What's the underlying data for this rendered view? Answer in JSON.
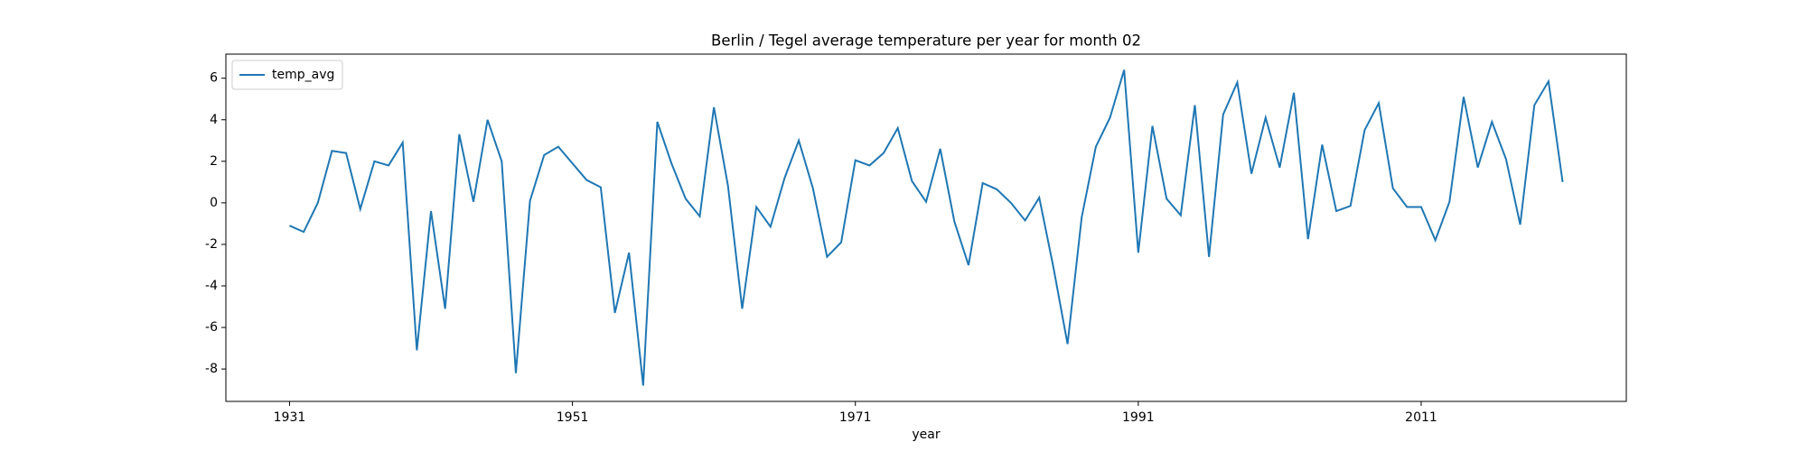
{
  "chart_data": {
    "type": "line",
    "title": "Berlin / Tegel average temperature per year for month 02",
    "x_label": "year",
    "x": [
      1931,
      1932,
      1933,
      1934,
      1935,
      1936,
      1937,
      1938,
      1939,
      1940,
      1941,
      1942,
      1943,
      1944,
      1945,
      1946,
      1947,
      1948,
      1949,
      1950,
      1951,
      1952,
      1953,
      1954,
      1955,
      1956,
      1957,
      1958,
      1959,
      1960,
      1961,
      1962,
      1963,
      1964,
      1965,
      1966,
      1967,
      1968,
      1969,
      1970,
      1971,
      1972,
      1973,
      1974,
      1975,
      1976,
      1977,
      1978,
      1979,
      1980,
      1981,
      1982,
      1983,
      1984,
      1985,
      1986,
      1987,
      1988,
      1989,
      1990,
      1991,
      1992,
      1993,
      1994,
      1995,
      1996,
      1997,
      1998,
      1999,
      2000,
      2001,
      2002,
      2003,
      2004,
      2005,
      2006,
      2007,
      2008,
      2009,
      2010,
      2011,
      2012,
      2013,
      2014,
      2015,
      2016,
      2017,
      2018,
      2019,
      2020,
      2021
    ],
    "series": [
      {
        "name": "temp_avg",
        "color": "#1f77b4",
        "values": [
          -1.1,
          -1.4,
          0.0,
          2.5,
          2.4,
          -0.3,
          2.0,
          1.8,
          2.9,
          -7.1,
          -0.4,
          -5.1,
          3.3,
          0.05,
          4.0,
          2.0,
          -8.2,
          0.1,
          2.3,
          2.7,
          1.9,
          1.1,
          0.75,
          -5.3,
          -2.4,
          -8.8,
          3.9,
          1.9,
          0.2,
          -0.65,
          4.6,
          0.8,
          -5.1,
          -0.2,
          -1.15,
          1.2,
          3.0,
          0.7,
          -2.6,
          -1.9,
          2.05,
          1.8,
          2.4,
          3.6,
          1.05,
          0.05,
          2.6,
          -0.9,
          -3.0,
          0.95,
          0.65,
          0.0,
          -0.85,
          0.25,
          -3.1,
          -6.8,
          -0.7,
          2.7,
          4.1,
          6.4,
          -2.4,
          3.7,
          0.2,
          -0.6,
          4.7,
          -2.6,
          4.25,
          5.8,
          1.4,
          4.1,
          1.7,
          5.3,
          -1.75,
          2.8,
          -0.4,
          -0.15,
          3.5,
          4.8,
          0.7,
          -0.2,
          -0.2,
          -1.8,
          0.05,
          5.1,
          1.7,
          3.9,
          2.1,
          -1.05,
          4.7,
          5.85,
          1.0
        ]
      }
    ],
    "xlim": [
      1926.5,
      2025.5
    ],
    "ylim": [
      -9.56,
      7.16
    ],
    "xticks": [
      1931,
      1951,
      1971,
      1991,
      2011
    ],
    "yticks": [
      -8,
      -6,
      -4,
      -2,
      0,
      2,
      4,
      6
    ],
    "legend": "upper left"
  }
}
